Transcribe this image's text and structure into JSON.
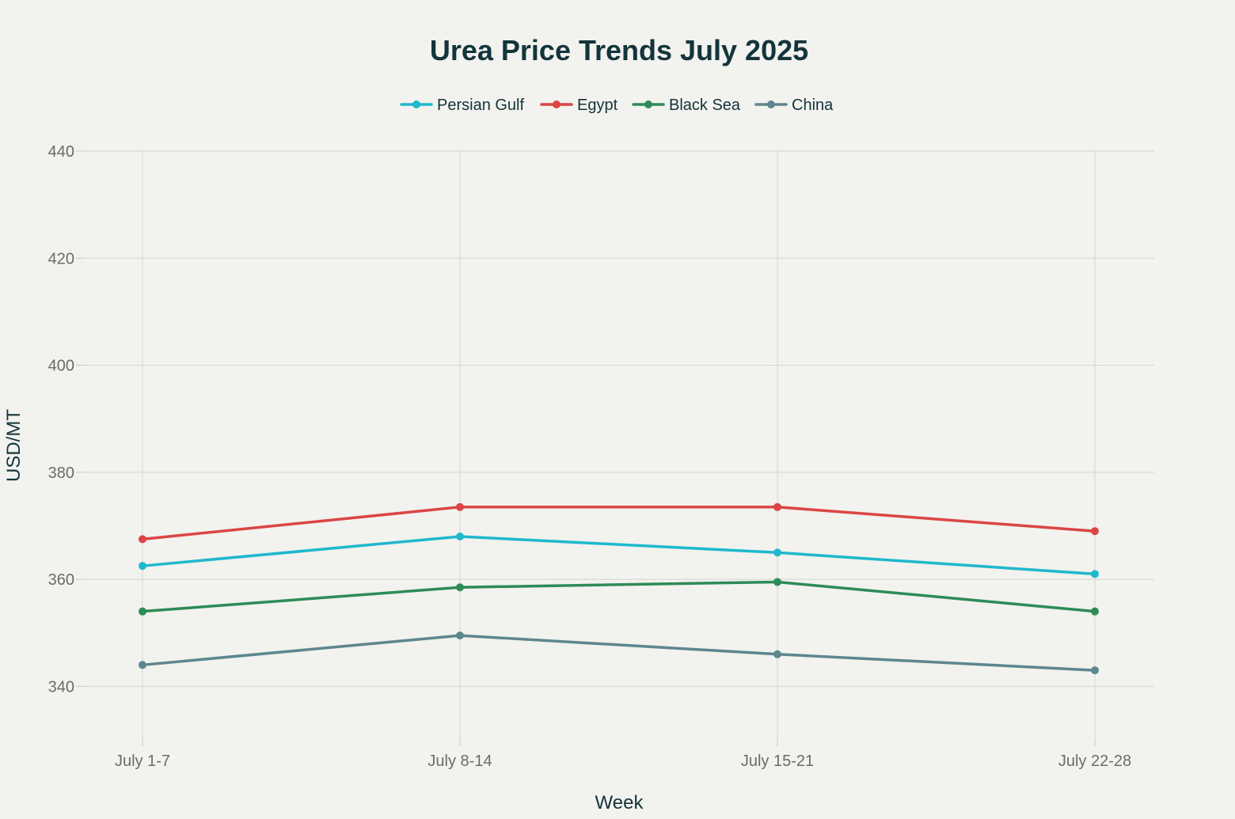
{
  "chart_data": {
    "type": "line",
    "title": "Urea Price Trends July 2025",
    "xlabel": "Week",
    "ylabel": "USD/MT",
    "categories": [
      "July 1-7",
      "July 8-14",
      "July 15-21",
      "July 22-28"
    ],
    "ylim": [
      330,
      440
    ],
    "yticks": [
      340,
      360,
      380,
      400,
      420,
      440
    ],
    "grid": true,
    "legend_position": "top-center",
    "series": [
      {
        "name": "Persian Gulf",
        "color": "#1fb8cd",
        "values": [
          362.5,
          368,
          365,
          361
        ]
      },
      {
        "name": "Egypt",
        "color": "#db4545",
        "values": [
          367.5,
          373.5,
          373.5,
          369
        ]
      },
      {
        "name": "Black Sea",
        "color": "#2e8b57",
        "values": [
          354,
          358.5,
          359.5,
          354
        ]
      },
      {
        "name": "China",
        "color": "#5d878f",
        "values": [
          344,
          349.5,
          346,
          343
        ]
      }
    ]
  }
}
